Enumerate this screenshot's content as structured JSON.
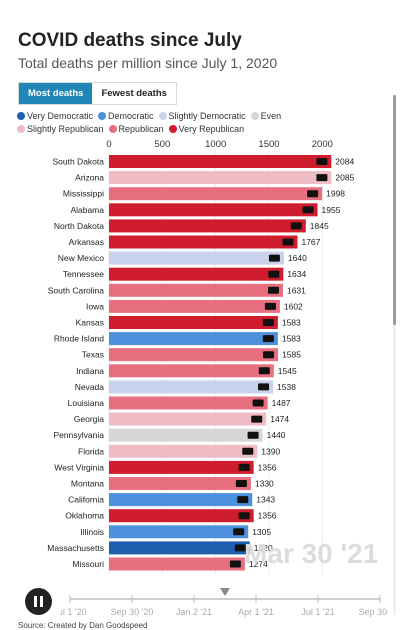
{
  "header": {
    "title": "COVID deaths since July",
    "subtitle": "Total deaths per million since July 1, 2020"
  },
  "tabs": [
    {
      "label": "Most deaths",
      "active": true
    },
    {
      "label": "Fewest deaths",
      "active": false
    }
  ],
  "legend": [
    {
      "label": "Very Democratic",
      "color": "#1f5fb0"
    },
    {
      "label": "Democratic",
      "color": "#4d90dd"
    },
    {
      "label": "Slightly Democratic",
      "color": "#c8d2ec"
    },
    {
      "label": "Even",
      "color": "#d6d6d6"
    },
    {
      "label": "Slightly Republican",
      "color": "#efbcc6"
    },
    {
      "label": "Republican",
      "color": "#e76f7f"
    },
    {
      "label": "Very Republican",
      "color": "#d01c2f"
    }
  ],
  "chart_data": {
    "type": "bar",
    "orientation": "horizontal",
    "title": "COVID deaths since July",
    "subtitle": "Total deaths per million since July 1, 2020",
    "xlim": [
      0,
      2100
    ],
    "xticks": [
      0,
      500,
      1000,
      1500,
      2000
    ],
    "current_date": "Mar 30 '21",
    "rows": [
      {
        "state": "South Dakota",
        "value": 2084,
        "lean": "Very Republican"
      },
      {
        "state": "Arizona",
        "value": 2085,
        "lean": "Slightly Republican"
      },
      {
        "state": "Mississippi",
        "value": 1998,
        "lean": "Republican"
      },
      {
        "state": "Alabama",
        "value": 1955,
        "lean": "Very Republican"
      },
      {
        "state": "North Dakota",
        "value": 1845,
        "lean": "Very Republican"
      },
      {
        "state": "Arkansas",
        "value": 1767,
        "lean": "Very Republican"
      },
      {
        "state": "New Mexico",
        "value": 1640,
        "lean": "Slightly Democratic"
      },
      {
        "state": "Tennessee",
        "value": 1634,
        "lean": "Very Republican"
      },
      {
        "state": "South Carolina",
        "value": 1631,
        "lean": "Republican"
      },
      {
        "state": "Iowa",
        "value": 1602,
        "lean": "Republican"
      },
      {
        "state": "Kansas",
        "value": 1583,
        "lean": "Very Republican"
      },
      {
        "state": "Rhode Island",
        "value": 1583,
        "lean": "Democratic"
      },
      {
        "state": "Texas",
        "value": 1585,
        "lean": "Republican"
      },
      {
        "state": "Indiana",
        "value": 1545,
        "lean": "Republican"
      },
      {
        "state": "Nevada",
        "value": 1538,
        "lean": "Slightly Democratic"
      },
      {
        "state": "Louisiana",
        "value": 1487,
        "lean": "Republican"
      },
      {
        "state": "Georgia",
        "value": 1474,
        "lean": "Slightly Republican"
      },
      {
        "state": "Pennsylvania",
        "value": 1440,
        "lean": "Even"
      },
      {
        "state": "Florida",
        "value": 1390,
        "lean": "Slightly Republican"
      },
      {
        "state": "West Virginia",
        "value": 1356,
        "lean": "Very Republican"
      },
      {
        "state": "Montana",
        "value": 1330,
        "lean": "Republican"
      },
      {
        "state": "California",
        "value": 1343,
        "lean": "Democratic"
      },
      {
        "state": "Oklahoma",
        "value": 1356,
        "lean": "Very Republican"
      },
      {
        "state": "Illinois",
        "value": 1305,
        "lean": "Democratic"
      },
      {
        "state": "Massachusetts",
        "value": 1320,
        "lean": "Very Democratic"
      },
      {
        "state": "Missouri",
        "value": 1274,
        "lean": "Republican"
      }
    ]
  },
  "timeline": {
    "labels": [
      "Jul 1 '20",
      "Sep 30 '20",
      "Jan 2 '21",
      "Apr 1 '21",
      "Jul 1 '21",
      "Sep 30 '21"
    ],
    "progress": 0.5
  },
  "footer": {
    "source": "Source: Created by Dan Goodspeed"
  }
}
